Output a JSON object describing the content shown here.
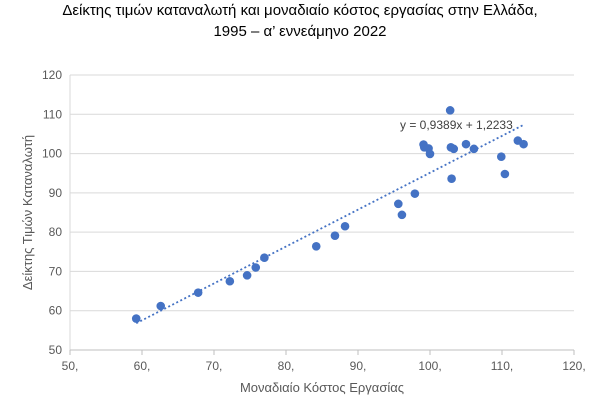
{
  "title": {
    "line1": "Δείκτης τιμών καταναλωτή και μοναδιαίο κόστος εργασίας στην Ελλάδα,",
    "line2": "1995 – α’ εννεάμηνο 2022"
  },
  "chart_data": {
    "type": "scatter",
    "xlabel": "Μοναδιαίο Κόστος Εργασίας",
    "ylabel": "Δείκτης Τιμών Καταναλωτή",
    "xlim": [
      50,
      120
    ],
    "ylim": [
      50,
      120
    ],
    "x_ticks": [
      50,
      60,
      70,
      80,
      90,
      100,
      110,
      120
    ],
    "x_tick_labels": [
      "50,",
      "60,",
      "70,",
      "80,",
      "90,",
      "100,",
      "110,",
      "120,"
    ],
    "y_ticks": [
      50,
      60,
      70,
      80,
      90,
      100,
      110,
      120
    ],
    "y_tick_labels": [
      "50",
      "60",
      "70",
      "80",
      "90",
      "100",
      "110",
      "120"
    ],
    "grid": "horizontal",
    "marker_color": "#4472C4",
    "trendline": {
      "slope": 0.9389,
      "intercept": 1.2233,
      "x_range": [
        59.2,
        113
      ],
      "label": "y = 0,9389x + 1,2233",
      "style": "dotted"
    },
    "points": [
      {
        "x": 59.2,
        "y": 58.0
      },
      {
        "x": 62.6,
        "y": 61.2
      },
      {
        "x": 67.8,
        "y": 64.6
      },
      {
        "x": 72.2,
        "y": 67.5
      },
      {
        "x": 74.6,
        "y": 69.0
      },
      {
        "x": 75.8,
        "y": 71.0
      },
      {
        "x": 77.0,
        "y": 73.5
      },
      {
        "x": 84.2,
        "y": 76.4
      },
      {
        "x": 86.8,
        "y": 79.1
      },
      {
        "x": 88.2,
        "y": 81.5
      },
      {
        "x": 95.6,
        "y": 87.2
      },
      {
        "x": 96.1,
        "y": 84.4
      },
      {
        "x": 97.9,
        "y": 89.8
      },
      {
        "x": 99.1,
        "y": 102.3
      },
      {
        "x": 99.2,
        "y": 101.6
      },
      {
        "x": 99.8,
        "y": 101.3
      },
      {
        "x": 100.0,
        "y": 99.9
      },
      {
        "x": 102.8,
        "y": 111.0
      },
      {
        "x": 102.9,
        "y": 101.6
      },
      {
        "x": 103.0,
        "y": 93.6
      },
      {
        "x": 103.3,
        "y": 101.2
      },
      {
        "x": 105.0,
        "y": 102.4
      },
      {
        "x": 106.1,
        "y": 101.2
      },
      {
        "x": 109.9,
        "y": 99.2
      },
      {
        "x": 110.4,
        "y": 94.8
      },
      {
        "x": 112.2,
        "y": 103.3
      },
      {
        "x": 113.0,
        "y": 102.4
      }
    ]
  }
}
